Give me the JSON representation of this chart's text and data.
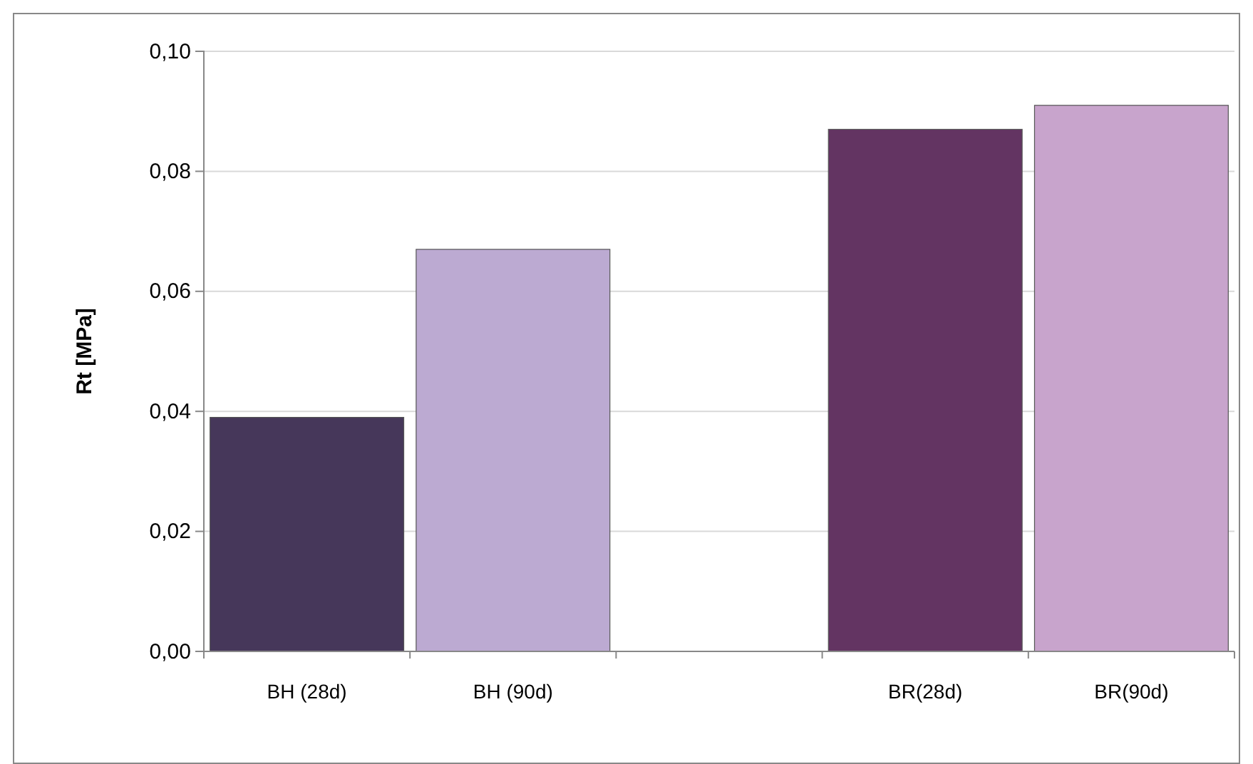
{
  "chart_data": {
    "type": "bar",
    "ylabel": "Rt [MPa]",
    "categories": [
      "BH (28d)",
      "BH (90d)",
      null,
      "BR(28d)",
      "BR(90d)"
    ],
    "values": [
      0.039,
      0.067,
      null,
      0.087,
      0.091
    ],
    "colors": [
      "#46375a",
      "#bcaad2",
      null,
      "#633462",
      "#c8a4cc"
    ],
    "ylim": [
      0,
      0.1
    ],
    "yticks": [
      {
        "value": 0,
        "label": "0,00"
      },
      {
        "value": 0.02,
        "label": "0,02"
      },
      {
        "value": 0.04,
        "label": "0,04"
      },
      {
        "value": 0.06,
        "label": "0,06"
      },
      {
        "value": 0.08,
        "label": "0,08"
      },
      {
        "value": 0.1,
        "label": "0,10"
      }
    ],
    "grid": "y"
  }
}
